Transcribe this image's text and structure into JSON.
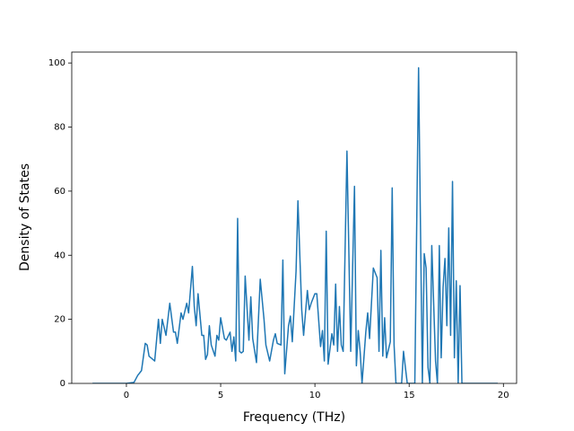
{
  "chart_data": {
    "type": "line",
    "xlabel": "Frequency (THz)",
    "ylabel": "Density of States",
    "color": "#1f77b4",
    "x": [
      -1.8,
      0,
      0.4,
      0.6,
      0.8,
      1.0,
      1.1,
      1.2,
      1.4,
      1.5,
      1.7,
      1.8,
      1.9,
      2.1,
      2.3,
      2.5,
      2.6,
      2.7,
      2.9,
      3.0,
      3.2,
      3.3,
      3.5,
      3.6,
      3.7,
      3.8,
      4.0,
      4.1,
      4.2,
      4.3,
      4.4,
      4.5,
      4.7,
      4.8,
      4.9,
      5.0,
      5.2,
      5.3,
      5.5,
      5.6,
      5.7,
      5.8,
      5.9,
      6.0,
      6.1,
      6.2,
      6.3,
      6.5,
      6.6,
      6.7,
      6.9,
      7.1,
      7.3,
      7.4,
      7.6,
      7.8,
      7.9,
      8.0,
      8.2,
      8.3,
      8.4,
      8.6,
      8.7,
      8.8,
      9.0,
      9.1,
      9.3,
      9.4,
      9.6,
      9.7,
      9.8,
      10.0,
      10.1,
      10.3,
      10.4,
      10.5,
      10.6,
      10.7,
      10.9,
      11.0,
      11.1,
      11.2,
      11.3,
      11.4,
      11.5,
      11.7,
      11.9,
      12.1,
      12.2,
      12.3,
      12.4,
      12.5,
      12.7,
      12.8,
      12.9,
      13.0,
      13.1,
      13.3,
      13.4,
      13.5,
      13.6,
      13.7,
      13.8,
      14.0,
      14.1,
      14.2,
      14.3,
      14.6,
      14.7,
      14.9,
      15.3,
      15.5,
      15.7,
      15.8,
      15.9,
      16.0,
      16.1,
      16.2,
      16.4,
      16.5,
      16.6,
      16.7,
      16.8,
      16.9,
      17.0,
      17.1,
      17.2,
      17.3,
      17.4,
      17.5,
      17.6,
      17.7,
      17.8,
      18.0,
      19.7
    ],
    "values": [
      0,
      0,
      0.3,
      2.5,
      4,
      12.5,
      12,
      8.5,
      7.5,
      7,
      20,
      12.5,
      20,
      15,
      25,
      16,
      16,
      12.5,
      22,
      20,
      25,
      22,
      36.5,
      24,
      18,
      28,
      15,
      15,
      7.5,
      9,
      18,
      12,
      8.5,
      15,
      13.5,
      20.5,
      14,
      13.5,
      16,
      10,
      14.5,
      7,
      51.5,
      10,
      9.5,
      10,
      33.5,
      13.5,
      27,
      14,
      6.5,
      32.5,
      20,
      12,
      7,
      13.5,
      15.5,
      12.5,
      12,
      38.5,
      3,
      18,
      21,
      13,
      35,
      57,
      23,
      15,
      29,
      23,
      25,
      28,
      28,
      11.5,
      16.5,
      7,
      47.5,
      6,
      15.5,
      12,
      31,
      10,
      24,
      12,
      10,
      72.5,
      10,
      61.5,
      5.5,
      16.5,
      10,
      0,
      16,
      22,
      14,
      25,
      36,
      33,
      10,
      41.5,
      8.5,
      20.5,
      8,
      13,
      61,
      12,
      0,
      0,
      10,
      0,
      0,
      98.5,
      0,
      40.5,
      36,
      5,
      0,
      43,
      7,
      0,
      43,
      8,
      30,
      39,
      18,
      48.5,
      15,
      63,
      8,
      32,
      0,
      30.5,
      0,
      0,
      0
    ],
    "xlim": [
      -2.9,
      20.7
    ],
    "ylim": [
      0,
      103.4
    ],
    "xticks": [
      0,
      5,
      10,
      15,
      20
    ],
    "yticks": [
      0,
      20,
      40,
      60,
      80,
      100
    ]
  }
}
